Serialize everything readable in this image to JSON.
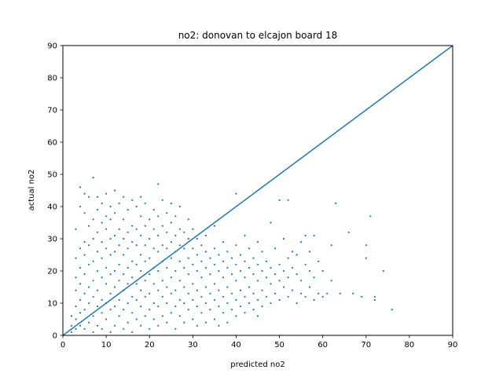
{
  "chart_data": {
    "type": "scatter",
    "title": "no2: donovan to elcajon board 18",
    "xlabel": "predicted no2",
    "ylabel": "actual no2",
    "xlim": [
      0,
      90
    ],
    "ylim": [
      0,
      90
    ],
    "xticks": [
      0,
      10,
      20,
      30,
      40,
      50,
      60,
      70,
      80,
      90
    ],
    "yticks": [
      0,
      10,
      20,
      30,
      40,
      50,
      60,
      70,
      80,
      90
    ],
    "grid": false,
    "color": "#1f77b4",
    "reference_line": {
      "x": [
        0,
        90
      ],
      "y": [
        0,
        90
      ]
    },
    "points": [
      [
        2,
        1
      ],
      [
        2,
        3
      ],
      [
        2,
        6
      ],
      [
        3,
        2
      ],
      [
        3,
        5
      ],
      [
        3,
        9
      ],
      [
        3,
        14
      ],
      [
        3,
        18
      ],
      [
        3,
        24
      ],
      [
        3,
        33
      ],
      [
        4,
        3
      ],
      [
        4,
        7
      ],
      [
        4,
        11
      ],
      [
        4,
        16
      ],
      [
        4,
        21
      ],
      [
        4,
        27
      ],
      [
        4,
        40
      ],
      [
        4,
        46
      ],
      [
        5,
        2
      ],
      [
        5,
        8
      ],
      [
        5,
        13
      ],
      [
        5,
        19
      ],
      [
        5,
        25
      ],
      [
        5,
        29
      ],
      [
        5,
        38
      ],
      [
        5,
        44
      ],
      [
        6,
        4
      ],
      [
        6,
        10
      ],
      [
        6,
        15
      ],
      [
        6,
        22
      ],
      [
        6,
        28
      ],
      [
        6,
        34
      ],
      [
        6,
        43
      ],
      [
        7,
        1
      ],
      [
        7,
        6
      ],
      [
        7,
        12
      ],
      [
        7,
        17
      ],
      [
        7,
        23
      ],
      [
        7,
        30
      ],
      [
        7,
        36
      ],
      [
        7,
        49
      ],
      [
        8,
        3
      ],
      [
        8,
        9
      ],
      [
        8,
        14
      ],
      [
        8,
        20
      ],
      [
        8,
        26
      ],
      [
        8,
        32
      ],
      [
        8,
        39
      ],
      [
        8,
        43
      ],
      [
        9,
        2
      ],
      [
        9,
        7
      ],
      [
        9,
        11
      ],
      [
        9,
        18
      ],
      [
        9,
        24
      ],
      [
        9,
        29
      ],
      [
        9,
        35
      ],
      [
        9,
        41
      ],
      [
        10,
        5
      ],
      [
        10,
        10
      ],
      [
        10,
        16
      ],
      [
        10,
        21
      ],
      [
        10,
        27
      ],
      [
        10,
        33
      ],
      [
        10,
        37
      ],
      [
        10,
        44
      ],
      [
        11,
        1
      ],
      [
        11,
        8
      ],
      [
        11,
        13
      ],
      [
        11,
        19
      ],
      [
        11,
        25
      ],
      [
        11,
        30
      ],
      [
        11,
        36
      ],
      [
        11,
        40
      ],
      [
        12,
        3
      ],
      [
        12,
        9
      ],
      [
        12,
        15
      ],
      [
        12,
        20
      ],
      [
        12,
        26
      ],
      [
        12,
        31
      ],
      [
        12,
        38
      ],
      [
        12,
        45
      ],
      [
        13,
        6
      ],
      [
        13,
        11
      ],
      [
        13,
        17
      ],
      [
        13,
        22
      ],
      [
        13,
        28
      ],
      [
        13,
        33
      ],
      [
        13,
        41
      ],
      [
        14,
        2
      ],
      [
        14,
        8
      ],
      [
        14,
        14
      ],
      [
        14,
        19
      ],
      [
        14,
        25
      ],
      [
        14,
        30
      ],
      [
        14,
        36
      ],
      [
        14,
        43
      ],
      [
        15,
        4
      ],
      [
        15,
        10
      ],
      [
        15,
        16
      ],
      [
        15,
        21
      ],
      [
        15,
        27
      ],
      [
        15,
        32
      ],
      [
        15,
        39
      ],
      [
        16,
        1
      ],
      [
        16,
        7
      ],
      [
        16,
        12
      ],
      [
        16,
        18
      ],
      [
        16,
        23
      ],
      [
        16,
        29
      ],
      [
        16,
        34
      ],
      [
        16,
        42
      ],
      [
        17,
        5
      ],
      [
        17,
        11
      ],
      [
        17,
        16
      ],
      [
        17,
        22
      ],
      [
        17,
        28
      ],
      [
        17,
        33
      ],
      [
        17,
        40
      ],
      [
        18,
        3
      ],
      [
        18,
        9
      ],
      [
        18,
        14
      ],
      [
        18,
        20
      ],
      [
        18,
        25
      ],
      [
        18,
        31
      ],
      [
        18,
        37
      ],
      [
        18,
        43
      ],
      [
        19,
        6
      ],
      [
        19,
        12
      ],
      [
        19,
        17
      ],
      [
        19,
        23
      ],
      [
        19,
        28
      ],
      [
        19,
        34
      ],
      [
        19,
        41
      ],
      [
        20,
        2
      ],
      [
        20,
        8
      ],
      [
        20,
        13
      ],
      [
        20,
        19
      ],
      [
        20,
        24
      ],
      [
        20,
        30
      ],
      [
        20,
        36
      ],
      [
        21,
        5
      ],
      [
        21,
        10
      ],
      [
        21,
        16
      ],
      [
        21,
        21
      ],
      [
        21,
        27
      ],
      [
        21,
        33
      ],
      [
        21,
        39
      ],
      [
        22,
        3
      ],
      [
        22,
        9
      ],
      [
        22,
        14
      ],
      [
        22,
        20
      ],
      [
        22,
        26
      ],
      [
        22,
        31
      ],
      [
        22,
        37
      ],
      [
        22,
        47
      ],
      [
        23,
        6
      ],
      [
        23,
        12
      ],
      [
        23,
        17
      ],
      [
        23,
        23
      ],
      [
        23,
        28
      ],
      [
        23,
        34
      ],
      [
        23,
        42
      ],
      [
        24,
        4
      ],
      [
        24,
        10
      ],
      [
        24,
        15
      ],
      [
        24,
        21
      ],
      [
        24,
        27
      ],
      [
        24,
        32
      ],
      [
        24,
        38
      ],
      [
        25,
        7
      ],
      [
        25,
        13
      ],
      [
        25,
        18
      ],
      [
        25,
        24
      ],
      [
        25,
        29
      ],
      [
        25,
        35
      ],
      [
        25,
        41
      ],
      [
        26,
        2
      ],
      [
        26,
        9
      ],
      [
        26,
        14
      ],
      [
        26,
        20
      ],
      [
        26,
        26
      ],
      [
        26,
        31
      ],
      [
        26,
        37
      ],
      [
        27,
        6
      ],
      [
        27,
        11
      ],
      [
        27,
        17
      ],
      [
        27,
        23
      ],
      [
        27,
        28
      ],
      [
        27,
        33
      ],
      [
        27,
        40
      ],
      [
        28,
        4
      ],
      [
        28,
        10
      ],
      [
        28,
        15
      ],
      [
        28,
        21
      ],
      [
        28,
        27
      ],
      [
        28,
        32
      ],
      [
        29,
        8
      ],
      [
        29,
        13
      ],
      [
        29,
        19
      ],
      [
        29,
        24
      ],
      [
        29,
        30
      ],
      [
        29,
        36
      ],
      [
        30,
        5
      ],
      [
        30,
        11
      ],
      [
        30,
        16
      ],
      [
        30,
        22
      ],
      [
        30,
        27
      ],
      [
        30,
        33
      ],
      [
        31,
        3
      ],
      [
        31,
        9
      ],
      [
        31,
        14
      ],
      [
        31,
        20
      ],
      [
        31,
        25
      ],
      [
        31,
        30
      ],
      [
        32,
        7
      ],
      [
        32,
        12
      ],
      [
        32,
        18
      ],
      [
        32,
        23
      ],
      [
        32,
        28
      ],
      [
        33,
        4
      ],
      [
        33,
        10
      ],
      [
        33,
        15
      ],
      [
        33,
        21
      ],
      [
        33,
        26
      ],
      [
        33,
        31
      ],
      [
        34,
        8
      ],
      [
        34,
        13
      ],
      [
        34,
        19
      ],
      [
        34,
        24
      ],
      [
        35,
        5
      ],
      [
        35,
        11
      ],
      [
        35,
        16
      ],
      [
        35,
        22
      ],
      [
        35,
        27
      ],
      [
        35,
        34
      ],
      [
        36,
        3
      ],
      [
        36,
        9
      ],
      [
        36,
        14
      ],
      [
        36,
        20
      ],
      [
        36,
        25
      ],
      [
        37,
        7
      ],
      [
        37,
        12
      ],
      [
        37,
        18
      ],
      [
        37,
        23
      ],
      [
        37,
        29
      ],
      [
        38,
        4
      ],
      [
        38,
        10
      ],
      [
        38,
        15
      ],
      [
        38,
        21
      ],
      [
        38,
        26
      ],
      [
        39,
        8
      ],
      [
        39,
        13
      ],
      [
        39,
        19
      ],
      [
        39,
        24
      ],
      [
        40,
        6
      ],
      [
        40,
        11
      ],
      [
        40,
        17
      ],
      [
        40,
        22
      ],
      [
        40,
        28
      ],
      [
        40,
        44
      ],
      [
        41,
        9
      ],
      [
        41,
        14
      ],
      [
        41,
        20
      ],
      [
        41,
        25
      ],
      [
        42,
        7
      ],
      [
        42,
        12
      ],
      [
        42,
        18
      ],
      [
        42,
        23
      ],
      [
        42,
        31
      ],
      [
        43,
        10
      ],
      [
        43,
        15
      ],
      [
        43,
        21
      ],
      [
        43,
        27
      ],
      [
        44,
        8
      ],
      [
        44,
        13
      ],
      [
        44,
        19
      ],
      [
        44,
        24
      ],
      [
        45,
        6
      ],
      [
        45,
        11
      ],
      [
        45,
        17
      ],
      [
        45,
        22
      ],
      [
        45,
        29
      ],
      [
        46,
        9
      ],
      [
        46,
        14
      ],
      [
        46,
        20
      ],
      [
        46,
        26
      ],
      [
        47,
        12
      ],
      [
        47,
        18
      ],
      [
        47,
        23
      ],
      [
        48,
        10
      ],
      [
        48,
        16
      ],
      [
        48,
        21
      ],
      [
        48,
        35
      ],
      [
        49,
        13
      ],
      [
        49,
        19
      ],
      [
        49,
        27
      ],
      [
        50,
        11
      ],
      [
        50,
        17
      ],
      [
        50,
        22
      ],
      [
        50,
        42
      ],
      [
        51,
        15
      ],
      [
        51,
        20
      ],
      [
        51,
        30
      ],
      [
        52,
        12
      ],
      [
        52,
        18
      ],
      [
        52,
        24
      ],
      [
        52,
        42
      ],
      [
        53,
        14
      ],
      [
        53,
        21
      ],
      [
        53,
        26
      ],
      [
        54,
        10
      ],
      [
        54,
        19
      ],
      [
        54,
        25
      ],
      [
        55,
        13
      ],
      [
        55,
        17
      ],
      [
        55,
        29
      ],
      [
        56,
        12
      ],
      [
        56,
        22
      ],
      [
        56,
        31
      ],
      [
        57,
        15
      ],
      [
        57,
        20
      ],
      [
        57,
        26
      ],
      [
        58,
        11
      ],
      [
        58,
        18
      ],
      [
        58,
        31
      ],
      [
        59,
        13
      ],
      [
        59,
        23
      ],
      [
        60,
        12
      ],
      [
        60,
        20
      ],
      [
        61,
        13
      ],
      [
        62,
        17
      ],
      [
        62,
        28
      ],
      [
        63,
        41
      ],
      [
        64,
        13
      ],
      [
        66,
        32
      ],
      [
        67,
        13
      ],
      [
        69,
        12
      ],
      [
        70,
        24
      ],
      [
        70,
        28
      ],
      [
        71,
        37
      ],
      [
        72,
        11
      ],
      [
        72,
        12
      ],
      [
        74,
        20
      ],
      [
        76,
        8
      ]
    ]
  }
}
